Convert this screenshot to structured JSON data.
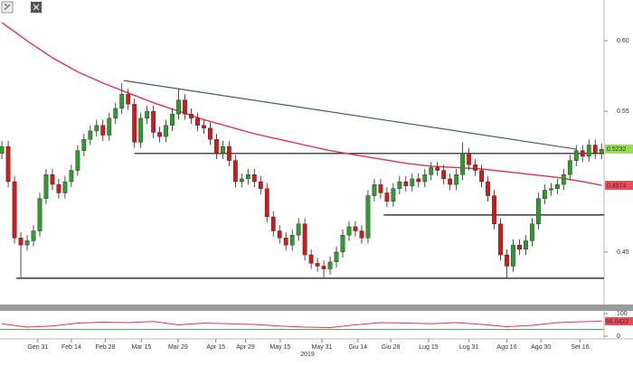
{
  "chart_data": {
    "type": "candlestick",
    "up_color": "#2f9a2f",
    "down_color": "#d11a1a",
    "open": [
      0.52,
      0.525,
      0.5,
      0.46,
      0.455,
      0.458,
      0.465,
      0.488,
      0.505,
      0.498,
      0.492,
      0.5,
      0.508,
      0.522,
      0.53,
      0.536,
      0.54,
      0.533,
      0.545,
      0.552,
      0.562,
      0.555,
      0.528,
      0.545,
      0.55,
      0.535,
      0.532,
      0.54,
      0.548,
      0.558,
      0.548,
      0.545,
      0.54,
      0.538,
      0.53,
      0.52,
      0.525,
      0.515,
      0.5,
      0.502,
      0.505,
      0.5,
      0.495,
      0.475,
      0.465,
      0.46,
      0.455,
      0.462,
      0.47,
      0.448,
      0.442,
      0.44,
      0.438,
      0.443,
      0.45,
      0.462,
      0.468,
      0.465,
      0.46,
      0.49,
      0.498,
      0.492,
      0.486,
      0.495,
      0.5,
      0.497,
      0.502,
      0.5,
      0.505,
      0.51,
      0.508,
      0.502,
      0.498,
      0.505,
      0.52,
      0.512,
      0.508,
      0.5,
      0.49,
      0.47,
      0.448,
      0.44,
      0.455,
      0.452,
      0.458,
      0.47,
      0.488,
      0.494,
      0.495,
      0.498,
      0.505,
      0.515,
      0.522,
      0.518,
      0.526,
      0.52
    ],
    "high": [
      0.529,
      0.529,
      0.504,
      0.464,
      0.462,
      0.469,
      0.492,
      0.509,
      0.509,
      0.502,
      0.504,
      0.512,
      0.526,
      0.534,
      0.54,
      0.544,
      0.544,
      0.549,
      0.556,
      0.57,
      0.566,
      0.559,
      0.549,
      0.554,
      0.554,
      0.539,
      0.544,
      0.552,
      0.566,
      0.562,
      0.552,
      0.549,
      0.544,
      0.542,
      0.534,
      0.529,
      0.529,
      0.519,
      0.506,
      0.509,
      0.509,
      0.504,
      0.499,
      0.479,
      0.469,
      0.464,
      0.466,
      0.474,
      0.474,
      0.452,
      0.446,
      0.444,
      0.447,
      0.454,
      0.466,
      0.472,
      0.472,
      0.469,
      0.494,
      0.502,
      0.502,
      0.496,
      0.499,
      0.504,
      0.504,
      0.506,
      0.506,
      0.509,
      0.514,
      0.514,
      0.512,
      0.506,
      0.509,
      0.528,
      0.524,
      0.516,
      0.512,
      0.504,
      0.494,
      0.474,
      0.452,
      0.459,
      0.459,
      0.462,
      0.474,
      0.492,
      0.498,
      0.499,
      0.502,
      0.509,
      0.519,
      0.526,
      0.526,
      0.53,
      0.53,
      0.527
    ],
    "low": [
      0.516,
      0.496,
      0.456,
      0.432,
      0.451,
      0.454,
      0.461,
      0.484,
      0.494,
      0.488,
      0.488,
      0.496,
      0.504,
      0.518,
      0.526,
      0.532,
      0.529,
      0.529,
      0.541,
      0.548,
      0.551,
      0.524,
      0.524,
      0.541,
      0.531,
      0.528,
      0.528,
      0.536,
      0.544,
      0.544,
      0.541,
      0.536,
      0.534,
      0.526,
      0.516,
      0.516,
      0.511,
      0.496,
      0.496,
      0.498,
      0.496,
      0.491,
      0.471,
      0.461,
      0.456,
      0.451,
      0.451,
      0.458,
      0.444,
      0.438,
      0.436,
      0.432,
      0.434,
      0.439,
      0.446,
      0.458,
      0.461,
      0.456,
      0.456,
      0.486,
      0.488,
      0.482,
      0.482,
      0.491,
      0.493,
      0.493,
      0.496,
      0.496,
      0.501,
      0.504,
      0.498,
      0.494,
      0.494,
      0.501,
      0.508,
      0.504,
      0.496,
      0.486,
      0.466,
      0.444,
      0.432,
      0.436,
      0.448,
      0.448,
      0.454,
      0.466,
      0.484,
      0.49,
      0.491,
      0.494,
      0.501,
      0.511,
      0.514,
      0.514,
      0.516,
      0.516
    ],
    "close": [
      0.525,
      0.5,
      0.46,
      0.455,
      0.458,
      0.465,
      0.488,
      0.505,
      0.498,
      0.492,
      0.5,
      0.508,
      0.522,
      0.53,
      0.536,
      0.54,
      0.533,
      0.545,
      0.552,
      0.562,
      0.555,
      0.528,
      0.545,
      0.55,
      0.535,
      0.532,
      0.54,
      0.548,
      0.558,
      0.548,
      0.545,
      0.54,
      0.538,
      0.53,
      0.52,
      0.525,
      0.515,
      0.5,
      0.502,
      0.505,
      0.5,
      0.495,
      0.475,
      0.465,
      0.46,
      0.455,
      0.462,
      0.47,
      0.448,
      0.442,
      0.44,
      0.438,
      0.443,
      0.45,
      0.462,
      0.468,
      0.465,
      0.46,
      0.49,
      0.498,
      0.492,
      0.486,
      0.495,
      0.5,
      0.497,
      0.502,
      0.5,
      0.505,
      0.51,
      0.508,
      0.502,
      0.498,
      0.505,
      0.52,
      0.512,
      0.508,
      0.5,
      0.49,
      0.47,
      0.448,
      0.44,
      0.455,
      0.452,
      0.458,
      0.47,
      0.488,
      0.494,
      0.495,
      0.498,
      0.505,
      0.515,
      0.522,
      0.518,
      0.526,
      0.52,
      0.523
    ],
    "ylim": [
      0.414,
      0.629
    ],
    "yticks": [
      {
        "value": 0.6,
        "label": "0.60"
      },
      0.55,
      0.45
    ],
    "xlim": [
      -0.3,
      95.4
    ],
    "xticks": [
      {
        "value": 5.7,
        "label": "Gen 31"
      },
      {
        "value": 11,
        "label": "Feb 14"
      },
      {
        "value": 16.4,
        "label": "Feb 28"
      },
      {
        "value": 22.1,
        "label": "Mar 15"
      },
      {
        "value": 27.9,
        "label": "Mar 29"
      },
      {
        "value": 33.9,
        "label": "Apr 15"
      },
      {
        "value": 38.6,
        "label": "Apr 29"
      },
      {
        "value": 44.1,
        "label": "May 15"
      },
      {
        "value": 50.7,
        "label": "May 31"
      },
      {
        "value": 56.4,
        "label": "Giu 14"
      },
      {
        "value": 61.6,
        "label": "Giu 28"
      },
      {
        "value": 67.6,
        "label": "Lug 15"
      },
      {
        "value": 74,
        "label": "Lug 31"
      },
      {
        "value": 80,
        "label": "Ago 16"
      },
      {
        "value": 85.4,
        "label": "Ago 30"
      },
      {
        "value": 91.6,
        "label": "Set 16"
      }
    ],
    "x_label": "2019",
    "moving_average": {
      "color": "#e8314a",
      "x": [
        0,
        4,
        8,
        12,
        16,
        20,
        24,
        28,
        32,
        36,
        40,
        44,
        48,
        52,
        56,
        60,
        64,
        68,
        72,
        76,
        80,
        84,
        88,
        92,
        95
      ],
      "values": [
        0.613,
        0.6,
        0.588,
        0.578,
        0.57,
        0.563,
        0.556,
        0.55,
        0.544,
        0.539,
        0.534,
        0.53,
        0.526,
        0.522,
        0.519,
        0.516,
        0.513,
        0.511,
        0.51,
        0.509,
        0.507,
        0.505,
        0.503,
        0.5,
        0.4974
      ]
    },
    "lines": [
      {
        "color": "#3d5f7a",
        "x": [
          19.3,
          91
        ],
        "values": [
          0.5718,
          0.5231
        ]
      },
      {
        "color": "#111111",
        "x": [
          21,
          95.4
        ],
        "values": [
          0.52,
          0.52
        ]
      },
      {
        "color": "#111111",
        "x": [
          60.5,
          95.4
        ],
        "values": [
          0.4763,
          0.4763
        ]
      },
      {
        "color": "#111111",
        "x": [
          2.3,
          95.4
        ],
        "values": [
          0.4314,
          0.4314
        ]
      }
    ],
    "last_price": {
      "value": 0.5232,
      "color": "#9bdc55"
    },
    "ma_price": {
      "value": 0.4974,
      "color": "#f04a5a"
    },
    "rsi": {
      "color": "#e8314a",
      "ylim": [
        0,
        100
      ],
      "yticks": [
        100,
        0
      ],
      "level": 30,
      "level_color": "#46b04a",
      "x": [
        0,
        4,
        8,
        12,
        16,
        20,
        24,
        28,
        32,
        36,
        40,
        44,
        48,
        52,
        56,
        60,
        64,
        68,
        72,
        76,
        80,
        84,
        88,
        92,
        95
      ],
      "values": [
        55,
        40,
        45,
        58,
        62,
        60,
        65,
        50,
        58,
        55,
        52,
        45,
        40,
        38,
        50,
        60,
        58,
        55,
        60,
        52,
        42,
        48,
        60,
        64,
        66.0422
      ]
    }
  }
}
